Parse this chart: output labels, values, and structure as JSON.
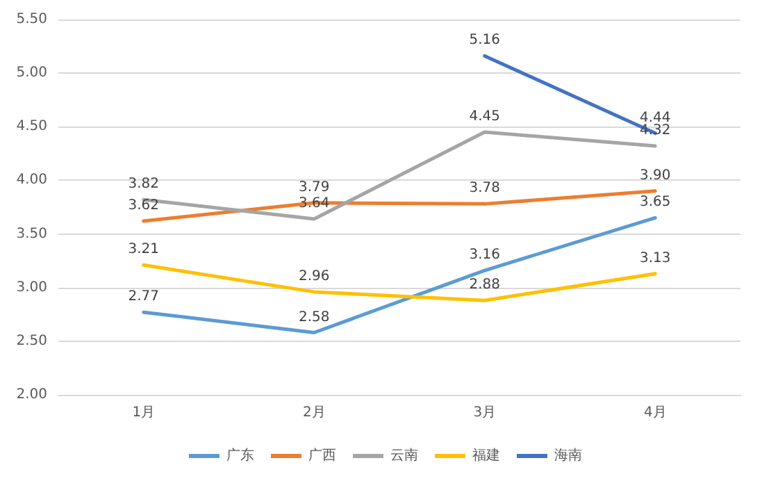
{
  "chart_data": {
    "type": "line",
    "categories": [
      "1月",
      "2月",
      "3月",
      "4月"
    ],
    "series": [
      {
        "name": "广东",
        "color": "#5b9bd5",
        "values": [
          2.77,
          2.58,
          3.16,
          3.65
        ],
        "value_labels": [
          "2.77",
          "2.58",
          "3.16",
          "3.65"
        ]
      },
      {
        "name": "广西",
        "color": "#ed7d31",
        "values": [
          3.62,
          3.79,
          3.78,
          3.9
        ],
        "value_labels": [
          "3.62",
          "3.79",
          "3.78",
          "3.90"
        ]
      },
      {
        "name": "云南",
        "color": "#a5a5a5",
        "values": [
          3.82,
          3.64,
          4.45,
          4.32
        ],
        "value_labels": [
          "3.82",
          "3.64",
          "4.45",
          "4.32"
        ]
      },
      {
        "name": "福建",
        "color": "#ffc000",
        "values": [
          3.21,
          2.96,
          2.88,
          3.13
        ],
        "value_labels": [
          "3.21",
          "2.96",
          "2.88",
          "3.13"
        ]
      },
      {
        "name": "海南",
        "color": "#4472c4",
        "values": [
          null,
          null,
          5.16,
          4.44
        ],
        "value_labels": [
          null,
          null,
          "5.16",
          "4.44"
        ]
      }
    ],
    "ylim": [
      2,
      5.5
    ],
    "yticks": [
      {
        "value": 2,
        "label": "2.00"
      },
      {
        "value": 2.5,
        "label": "2.50"
      },
      {
        "value": 3,
        "label": "3.00"
      },
      {
        "value": 3.5,
        "label": "3.50"
      },
      {
        "value": 4,
        "label": "4.00"
      },
      {
        "value": 4.5,
        "label": "4.50"
      },
      {
        "value": 5,
        "label": "5.00"
      },
      {
        "value": 5.5,
        "label": "5.50"
      }
    ],
    "grid": "y",
    "legend": "bottom",
    "marker": "none",
    "line_style": "solid"
  }
}
